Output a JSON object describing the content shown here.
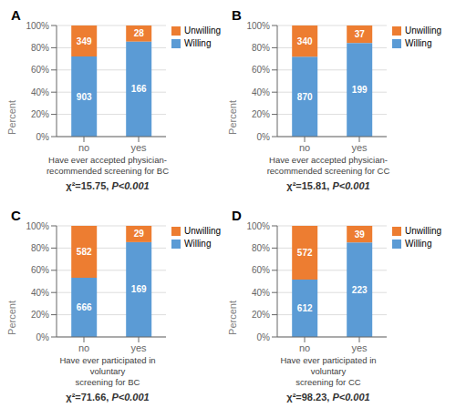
{
  "chart_data": [
    {
      "type": "bar",
      "title": "A",
      "stacked": true,
      "grid": true,
      "legend": "right",
      "categories": [
        "no",
        "yes"
      ],
      "series": [
        {
          "name": "Willing",
          "color": "#5B9BD5",
          "values": [
            72.1246006,
            85.5670103
          ],
          "counts": [
            903,
            166
          ]
        },
        {
          "name": "Unwilling",
          "color": "#ED7D31",
          "values": [
            27.8753994,
            14.4329897
          ],
          "counts": [
            349,
            28
          ]
        }
      ],
      "xlabel": "Have ever accepted physician-\nrecommended screening for BC",
      "ylabel": "Percent",
      "annotations": [
        "χ²=15.75, ",
        "P<0.001"
      ],
      "ylim": [
        0,
        100
      ],
      "yticks": [
        {
          "value": 0,
          "label": "0%"
        },
        {
          "value": 20,
          "label": "20%"
        },
        {
          "value": 40,
          "label": "40%"
        },
        {
          "value": 60,
          "label": "60%"
        },
        {
          "value": 80,
          "label": "80%"
        },
        {
          "value": 100,
          "label": "100%"
        }
      ]
    },
    {
      "type": "bar",
      "title": "B",
      "stacked": true,
      "grid": true,
      "legend": "right",
      "categories": [
        "no",
        "yes"
      ],
      "series": [
        {
          "name": "Willing",
          "color": "#5B9BD5",
          "values": [
            71.9008264,
            84.3220339
          ],
          "counts": [
            870,
            199
          ]
        },
        {
          "name": "Unwilling",
          "color": "#ED7D31",
          "values": [
            28.0991736,
            15.6779661
          ],
          "counts": [
            340,
            37
          ]
        }
      ],
      "xlabel": "Have ever accepted physician-\nrecommended screening for CC",
      "ylabel": "Percent",
      "annotations": [
        "χ²=15.81, ",
        "P<0.001"
      ],
      "ylim": [
        0,
        100
      ],
      "yticks": [
        {
          "value": 0,
          "label": "0%"
        },
        {
          "value": 20,
          "label": "20%"
        },
        {
          "value": 40,
          "label": "40%"
        },
        {
          "value": 60,
          "label": "60%"
        },
        {
          "value": 80,
          "label": "80%"
        },
        {
          "value": 100,
          "label": "100%"
        }
      ]
    },
    {
      "type": "bar",
      "title": "C",
      "stacked": true,
      "grid": true,
      "legend": "right",
      "categories": [
        "no",
        "yes"
      ],
      "series": [
        {
          "name": "Willing",
          "color": "#5B9BD5",
          "values": [
            53.3653846,
            85.3535354
          ],
          "counts": [
            666,
            169
          ]
        },
        {
          "name": "Unwilling",
          "color": "#ED7D31",
          "values": [
            46.6346154,
            14.6464646
          ],
          "counts": [
            582,
            29
          ]
        }
      ],
      "xlabel": "Have ever participated in voluntary\nscreening for BC",
      "ylabel": "Percent",
      "annotations": [
        "χ²=71.66, ",
        "P<0.001"
      ],
      "ylim": [
        0,
        100
      ],
      "yticks": [
        {
          "value": 0,
          "label": "0%"
        },
        {
          "value": 20,
          "label": "20%"
        },
        {
          "value": 40,
          "label": "40%"
        },
        {
          "value": 60,
          "label": "60%"
        },
        {
          "value": 80,
          "label": "80%"
        },
        {
          "value": 100,
          "label": "100%"
        }
      ]
    },
    {
      "type": "bar",
      "title": "D",
      "stacked": true,
      "grid": true,
      "legend": "right",
      "categories": [
        "no",
        "yes"
      ],
      "series": [
        {
          "name": "Willing",
          "color": "#5B9BD5",
          "values": [
            51.6891892,
            85.1145038
          ],
          "counts": [
            612,
            223
          ]
        },
        {
          "name": "Unwilling",
          "color": "#ED7D31",
          "values": [
            48.3108108,
            14.8854962
          ],
          "counts": [
            572,
            39
          ]
        }
      ],
      "xlabel": "Have ever participated in voluntary\nscreening for CC",
      "ylabel": "Percent",
      "annotations": [
        "χ²=98.23, ",
        "P<0.001"
      ],
      "ylim": [
        0,
        100
      ],
      "yticks": [
        {
          "value": 0,
          "label": "0%"
        },
        {
          "value": 20,
          "label": "20%"
        },
        {
          "value": 40,
          "label": "40%"
        },
        {
          "value": 60,
          "label": "60%"
        },
        {
          "value": 80,
          "label": "80%"
        },
        {
          "value": 100,
          "label": "100%"
        }
      ]
    }
  ]
}
